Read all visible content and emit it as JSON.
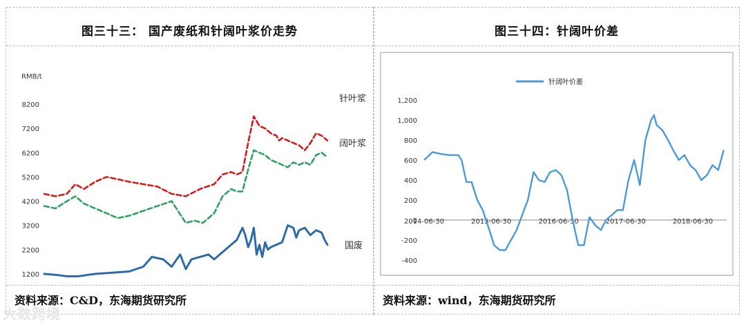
{
  "left_panel": {
    "title": "图三十三：  国产废纸和针阔叶浆价走势",
    "source": "资料来源：C&D，东海期货研究所"
  },
  "right_panel": {
    "title": "图三十四：针阔叶价差",
    "source": "资料来源：wind，东海期货研究所"
  },
  "watermark": "大数跨境",
  "chart_data": [
    {
      "type": "line",
      "title": "",
      "ylabel": "RMB/t",
      "ylim": [
        1200,
        8200
      ],
      "yticks": [
        1200,
        2200,
        3200,
        4200,
        5200,
        6200,
        7200,
        8200
      ],
      "xlim": [
        0,
        100
      ],
      "x_tick_labels": [],
      "grid": false,
      "legend": "inline labels on the right",
      "series": [
        {
          "name": "针叶浆",
          "color": "#d7191c",
          "dash": true,
          "x": [
            0,
            4,
            8,
            11,
            14,
            18,
            22,
            26,
            30,
            35,
            40,
            45,
            50,
            55,
            60,
            63,
            66,
            68,
            70,
            72,
            74,
            76,
            78,
            80,
            82,
            83,
            84,
            86,
            88,
            90,
            92,
            94,
            96,
            98,
            100
          ],
          "y": [
            4500,
            4400,
            4500,
            4900,
            4700,
            5000,
            5200,
            5100,
            5000,
            4900,
            4800,
            4500,
            4400,
            4700,
            4900,
            5300,
            5400,
            5300,
            5400,
            6600,
            7700,
            7300,
            7200,
            7000,
            6900,
            6700,
            6800,
            6700,
            6600,
            6500,
            6300,
            6600,
            7000,
            6900,
            6700
          ]
        },
        {
          "name": "阔叶浆",
          "color": "#2ca25f",
          "dash": true,
          "x": [
            0,
            4,
            8,
            11,
            14,
            18,
            22,
            26,
            30,
            35,
            40,
            45,
            50,
            53,
            56,
            60,
            63,
            66,
            68,
            70,
            72,
            74,
            76,
            78,
            80,
            82,
            84,
            86,
            88,
            90,
            92,
            94,
            96,
            98,
            100
          ],
          "y": [
            4000,
            3900,
            4200,
            4400,
            4100,
            3900,
            3700,
            3500,
            3600,
            3800,
            4000,
            4200,
            3300,
            3400,
            3300,
            3700,
            4400,
            4700,
            4600,
            4600,
            5500,
            6300,
            6200,
            6100,
            5900,
            5800,
            5700,
            5600,
            5800,
            5700,
            5800,
            5700,
            6100,
            6200,
            6000
          ]
        },
        {
          "name": "国废",
          "color": "#2c6aa8",
          "dash": false,
          "x": [
            0,
            5,
            8,
            12,
            18,
            24,
            30,
            35,
            38,
            42,
            45,
            48,
            50,
            52,
            55,
            58,
            60,
            63,
            66,
            68,
            70,
            71,
            72,
            73,
            74,
            75,
            76,
            77,
            78,
            79,
            80,
            82,
            84,
            86,
            88,
            89,
            90,
            92,
            94,
            96,
            98,
            99,
            100
          ],
          "y": [
            1200,
            1150,
            1100,
            1100,
            1200,
            1250,
            1300,
            1500,
            1900,
            1800,
            1500,
            2000,
            1400,
            1800,
            1900,
            2000,
            1800,
            2100,
            2400,
            2600,
            3100,
            2800,
            2300,
            2600,
            3100,
            2000,
            2400,
            1900,
            2500,
            2200,
            2300,
            2400,
            2500,
            3200,
            3100,
            2700,
            3000,
            3100,
            2800,
            3000,
            2900,
            2600,
            2400
          ]
        }
      ]
    },
    {
      "type": "line",
      "title": "",
      "ylabel": "",
      "ylim": [
        -400,
        1200
      ],
      "yticks": [
        -400,
        -200,
        0,
        200,
        400,
        600,
        800,
        1000,
        1200
      ],
      "ytick_labels": [
        "-400",
        "-200",
        "0",
        "200",
        "400",
        "600",
        "800",
        "1,000",
        "1,200"
      ],
      "x_tick_labels": [
        "2014-06-30",
        "2015-06-30",
        "2016-06-30",
        "2017-06-30",
        "2018-06-30"
      ],
      "xlim": [
        "2014-06-30",
        "2018-12-31"
      ],
      "grid": false,
      "legend": "top-center",
      "series": [
        {
          "name": "针阔叶价差",
          "color": "#4a9ad9",
          "dash": false,
          "x": [
            "2014-06-30",
            "2014-08-15",
            "2014-10-01",
            "2014-11-15",
            "2015-01-01",
            "2015-01-20",
            "2015-02-15",
            "2015-03-15",
            "2015-04-15",
            "2015-05-15",
            "2015-06-01",
            "2015-06-20",
            "2015-07-15",
            "2015-08-15",
            "2015-09-15",
            "2015-10-15",
            "2015-11-15",
            "2015-12-15",
            "2016-01-15",
            "2016-02-15",
            "2016-03-15",
            "2016-04-15",
            "2016-05-15",
            "2016-06-15",
            "2016-07-15",
            "2016-08-15",
            "2016-09-15",
            "2016-10-15",
            "2016-11-15",
            "2016-12-15",
            "2017-01-15",
            "2017-02-15",
            "2017-03-15",
            "2017-04-15",
            "2017-05-15",
            "2017-06-15",
            "2017-07-15",
            "2017-08-15",
            "2017-09-15",
            "2017-10-15",
            "2017-11-15",
            "2017-12-01",
            "2017-12-15",
            "2018-01-15",
            "2018-02-15",
            "2018-03-15",
            "2018-04-15",
            "2018-05-15",
            "2018-06-15",
            "2018-07-15",
            "2018-08-15",
            "2018-09-15",
            "2018-10-15",
            "2018-11-15",
            "2018-12-15"
          ],
          "y": [
            600,
            680,
            660,
            650,
            650,
            600,
            380,
            380,
            200,
            100,
            0,
            -100,
            -250,
            -300,
            -300,
            -200,
            -100,
            50,
            200,
            480,
            400,
            380,
            480,
            500,
            450,
            300,
            0,
            -250,
            -250,
            30,
            -50,
            -100,
            0,
            50,
            100,
            100,
            400,
            600,
            350,
            800,
            1000,
            1050,
            950,
            900,
            800,
            700,
            600,
            650,
            550,
            500,
            400,
            450,
            550,
            500,
            700
          ]
        }
      ]
    }
  ]
}
